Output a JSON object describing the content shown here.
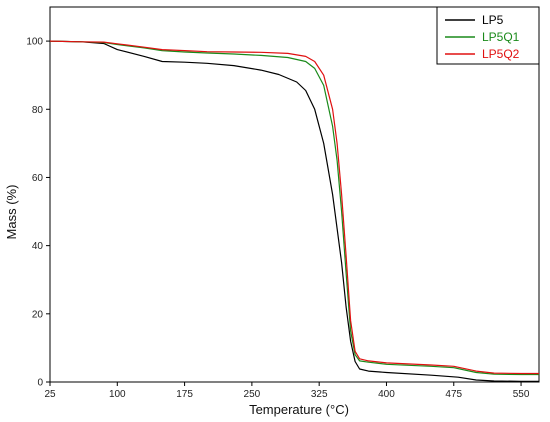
{
  "chart_data": {
    "type": "line",
    "title": "",
    "xlabel": "Temperature (°C)",
    "ylabel": "Mass (%)",
    "xlim": [
      25,
      570
    ],
    "ylim": [
      0,
      110
    ],
    "x_ticks": [
      25,
      100,
      175,
      250,
      325,
      400,
      475,
      550
    ],
    "y_ticks": [
      0,
      20,
      40,
      60,
      80,
      100
    ],
    "grid": false,
    "legend_position": "top-right",
    "series": [
      {
        "name": "LP5",
        "color": "#000000",
        "x": [
          25,
          60,
          85,
          100,
          130,
          150,
          175,
          200,
          230,
          260,
          280,
          300,
          310,
          320,
          330,
          340,
          345,
          350,
          355,
          360,
          365,
          370,
          380,
          400,
          450,
          480,
          500,
          520,
          550,
          570
        ],
        "y": [
          100,
          99.8,
          99.3,
          97.5,
          95.5,
          94,
          93.8,
          93.5,
          92.8,
          91.5,
          90.2,
          88,
          85.5,
          80,
          70,
          55,
          45,
          35,
          22,
          12,
          6,
          3.8,
          3.2,
          2.8,
          2,
          1.4,
          0.6,
          0.3,
          0.2,
          0.2
        ]
      },
      {
        "name": "LP5Q1",
        "color": "#1a8a1a",
        "x": [
          25,
          60,
          85,
          100,
          130,
          150,
          175,
          200,
          230,
          260,
          290,
          310,
          320,
          330,
          340,
          345,
          350,
          355,
          360,
          365,
          370,
          380,
          400,
          450,
          475,
          500,
          520,
          550,
          570
        ],
        "y": [
          100,
          99.8,
          99.6,
          99,
          98,
          97.2,
          96.8,
          96.5,
          96.2,
          95.8,
          95.2,
          94,
          92,
          87,
          75,
          65,
          50,
          32,
          15,
          8,
          6.2,
          5.8,
          5.2,
          4.6,
          4.2,
          2.8,
          2.3,
          2.2,
          2.2
        ]
      },
      {
        "name": "LP5Q2",
        "color": "#e01010",
        "x": [
          25,
          60,
          85,
          100,
          130,
          150,
          175,
          200,
          230,
          260,
          290,
          310,
          320,
          330,
          340,
          345,
          350,
          355,
          360,
          365,
          370,
          380,
          400,
          450,
          475,
          500,
          520,
          550,
          570
        ],
        "y": [
          100,
          99.8,
          99.7,
          99.2,
          98.2,
          97.5,
          97.2,
          96.9,
          96.8,
          96.7,
          96.4,
          95.5,
          94,
          90,
          80,
          70,
          55,
          37,
          18,
          9,
          6.8,
          6.2,
          5.6,
          5,
          4.6,
          3.2,
          2.6,
          2.5,
          2.5
        ]
      }
    ]
  }
}
